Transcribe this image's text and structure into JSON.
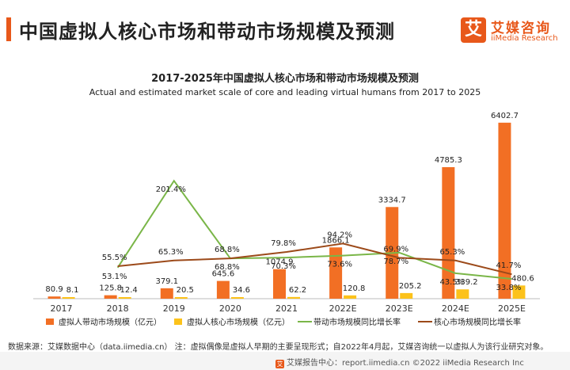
{
  "header": {
    "title": "中国虚拟人核心市场和带动市场规模及预测",
    "logo_mark": "艾",
    "logo_cn": "艾媒咨询",
    "logo_en": "iiMedia Research",
    "logo_icon": "iimedia-logo-icon"
  },
  "chart_data": {
    "type": "bar",
    "title": "2017-2025年中国虚拟人核心市场和带动市场规模及预测",
    "subtitle": "Actual and estimated market scale of core and leading virtual humans from 2017 to 2025",
    "categories": [
      "2017",
      "2018",
      "2019",
      "2020",
      "2021",
      "2022E",
      "2023E",
      "2024E",
      "2025E"
    ],
    "series": [
      {
        "name": "虚拟人带动市场规模（亿元）",
        "kind": "bar",
        "axis": "left",
        "color": "#f26f24",
        "values": [
          80.9,
          125.8,
          379.1,
          645.6,
          1074.9,
          1866.1,
          3334.7,
          4785.3,
          6402.7
        ]
      },
      {
        "name": "虚拟人核心市场规模（亿元）",
        "kind": "bar",
        "axis": "left",
        "color": "#fcc21b",
        "values": [
          8.1,
          12.4,
          20.5,
          34.6,
          62.2,
          120.8,
          205.2,
          339.2,
          480.6
        ]
      },
      {
        "name": "带动市场规模同比增长率",
        "kind": "line",
        "axis": "right",
        "color": "#7ab648",
        "start_index": 1,
        "values": [
          null,
          53.1,
          201.4,
          68.8,
          70.3,
          73.6,
          78.7,
          43.5,
          33.8
        ],
        "labels": [
          null,
          "53.1%",
          "201.4%",
          "68.8%",
          "70.3%",
          "73.6%",
          "78.7%",
          "43.5%",
          "33.8%"
        ]
      },
      {
        "name": "核心市场规模同比增长率",
        "kind": "line",
        "axis": "right",
        "color": "#9c4a1a",
        "start_index": 1,
        "values": [
          null,
          55.5,
          65.3,
          68.8,
          79.8,
          94.2,
          69.9,
          65.3,
          41.7
        ],
        "labels": [
          null,
          "55.5%",
          "65.3%",
          "68.8%",
          "79.8%",
          "94.2%",
          "69.9%",
          "65.3%",
          "41.7%"
        ]
      }
    ],
    "ylim_left": [
      0,
      6600
    ],
    "ylim_right": [
      0,
      310
    ],
    "grid": false,
    "legend": "bottom"
  },
  "footer": {
    "note": "数据来源：艾媒数据中心（data.iimedia.cn） 注：虚拟偶像是虚拟人早期的主要呈现形式；自2022年4月起，艾媒咨询统一以虚拟人为该行业研究对象。",
    "brand_mark": "艾",
    "brand": "艾媒报告中心：report.iimedia.cn ©2022 iiMedia Research Inc"
  }
}
